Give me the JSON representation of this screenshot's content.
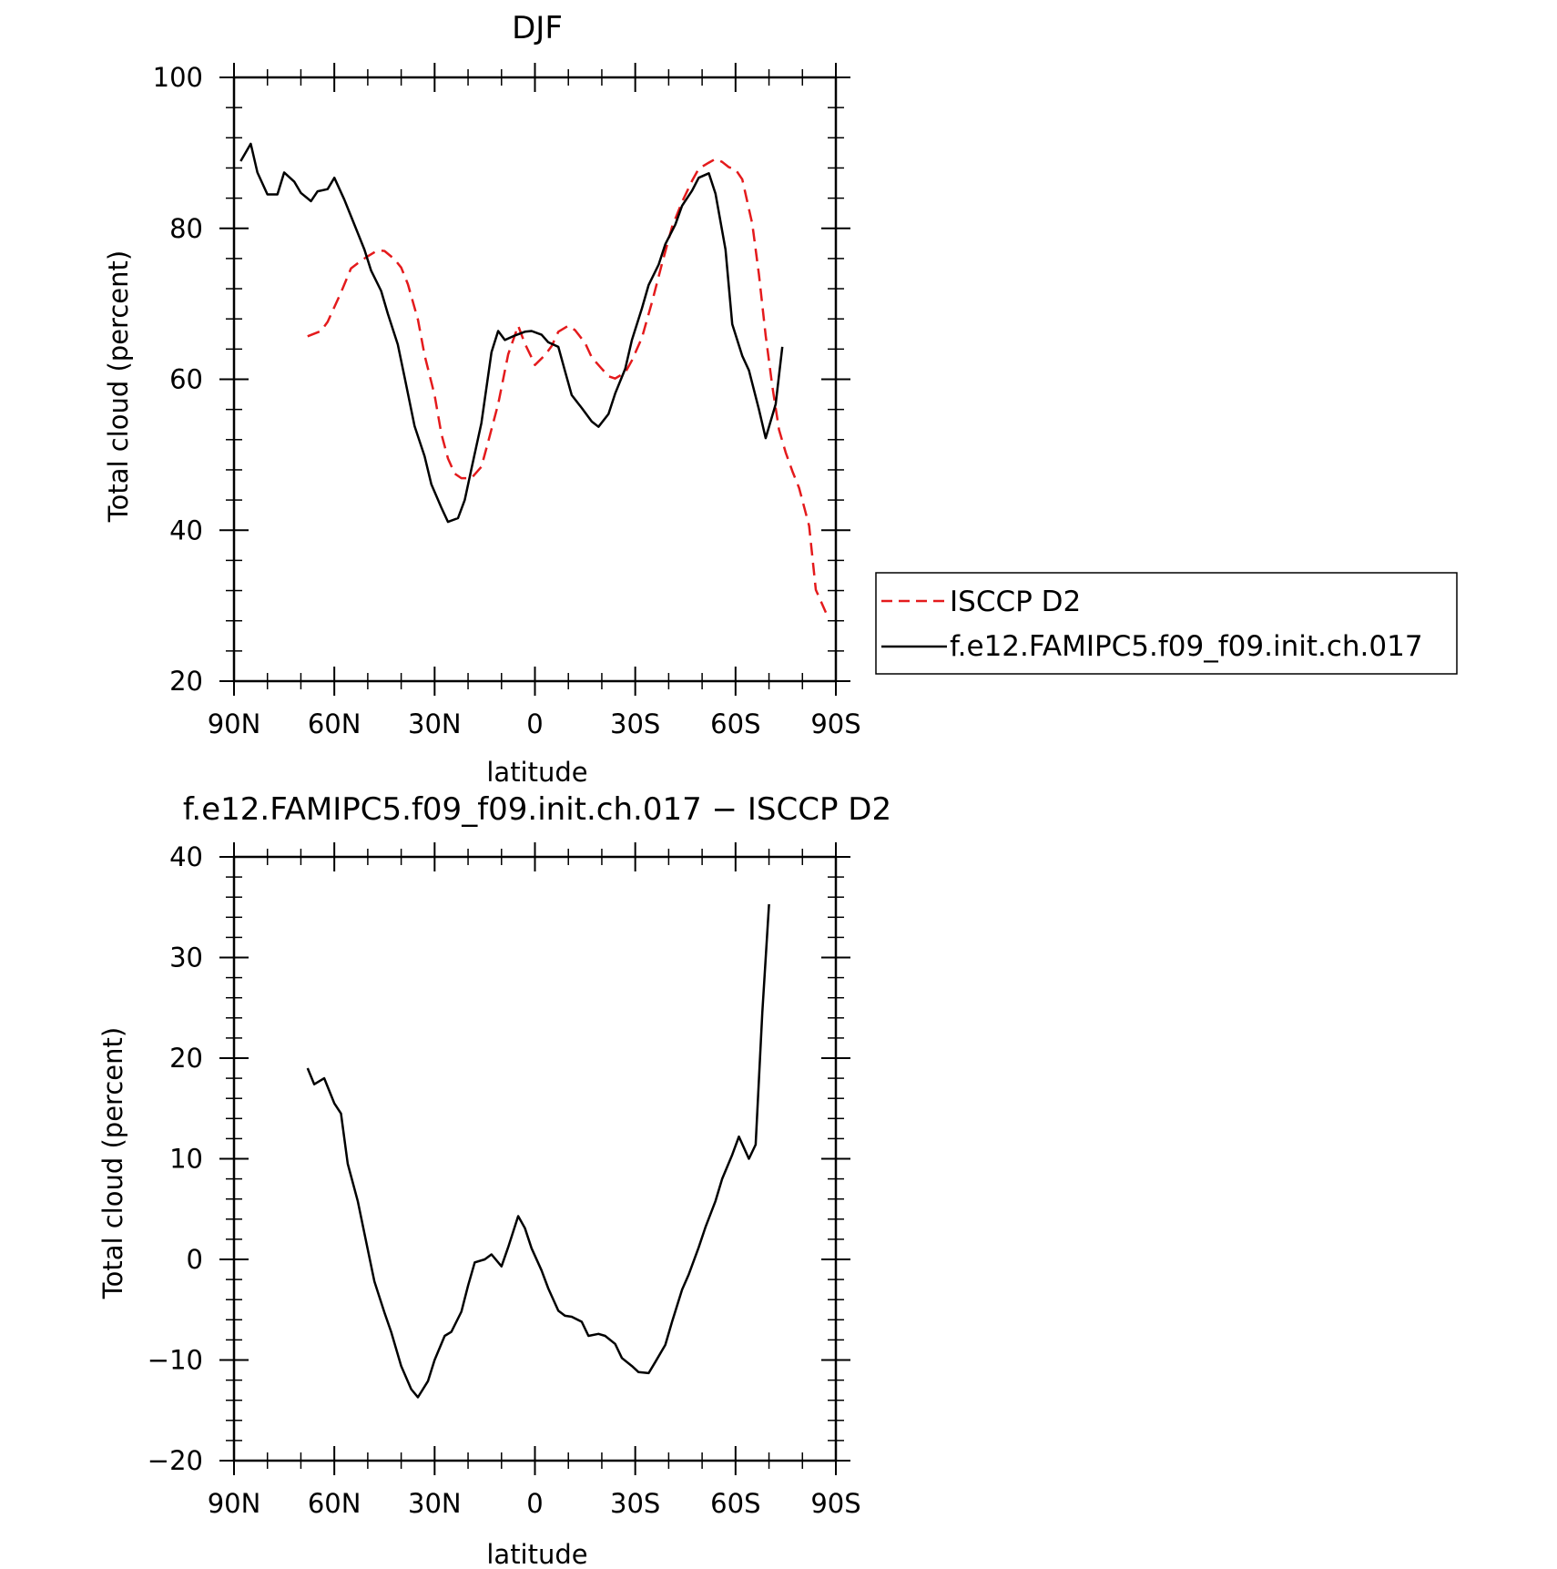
{
  "chart_data": [
    {
      "type": "line",
      "title": "DJF",
      "xlabel": "latitude",
      "ylabel": "Total cloud (percent)",
      "xlim": [
        90,
        -90
      ],
      "ylim": [
        20,
        100
      ],
      "x_ticks": [
        90,
        60,
        30,
        0,
        -30,
        -60,
        -90
      ],
      "x_tick_labels": [
        "90N",
        "60N",
        "30N",
        "0",
        "30S",
        "60S",
        "90S"
      ],
      "y_ticks": [
        20,
        40,
        60,
        80,
        100
      ],
      "y_tick_labels": [
        "20",
        "40",
        "60",
        "80",
        "100"
      ],
      "legend_position": "right",
      "series": [
        {
          "name": "ISCCP D2",
          "color": "#e41a1c",
          "style": "dashed",
          "points": [
            [
              68,
              65.7
            ],
            [
              64,
              66.4
            ],
            [
              62,
              67.6
            ],
            [
              58,
              71.5
            ],
            [
              55,
              74.7
            ],
            [
              52,
              75.7
            ],
            [
              50,
              76.3
            ],
            [
              47,
              77.1
            ],
            [
              45,
              77.0
            ],
            [
              42,
              75.9
            ],
            [
              40,
              74.8
            ],
            [
              38,
              72.6
            ],
            [
              35,
              67.9
            ],
            [
              33,
              63.2
            ],
            [
              30,
              57.9
            ],
            [
              28,
              52.8
            ],
            [
              26,
              49.5
            ],
            [
              24,
              47.5
            ],
            [
              22,
              46.9
            ],
            [
              19,
              46.9
            ],
            [
              16,
              48.4
            ],
            [
              14,
              51.7
            ],
            [
              11,
              56.7
            ],
            [
              8,
              63.3
            ],
            [
              5,
              67.1
            ],
            [
              3,
              64.7
            ],
            [
              1,
              62.9
            ],
            [
              0,
              61.9
            ],
            [
              -3,
              63.2
            ],
            [
              -5,
              64.4
            ],
            [
              -7,
              66.3
            ],
            [
              -10,
              67.1
            ],
            [
              -12,
              66.5
            ],
            [
              -15,
              64.8
            ],
            [
              -17,
              62.9
            ],
            [
              -20,
              61.4
            ],
            [
              -22,
              60.4
            ],
            [
              -24,
              60.1
            ],
            [
              -27,
              60.9
            ],
            [
              -29,
              62.5
            ],
            [
              -32,
              65.5
            ],
            [
              -35,
              70.2
            ],
            [
              -38,
              75.3
            ],
            [
              -41,
              80.2
            ],
            [
              -44,
              83.5
            ],
            [
              -47,
              86.3
            ],
            [
              -49,
              87.9
            ],
            [
              -52,
              88.7
            ],
            [
              -54,
              89.2
            ],
            [
              -56,
              88.8
            ],
            [
              -58,
              88.1
            ],
            [
              -60,
              87.8
            ],
            [
              -62,
              86.5
            ],
            [
              -65,
              80.6
            ],
            [
              -67,
              73.9
            ],
            [
              -69,
              65.8
            ],
            [
              -71,
              59.1
            ],
            [
              -73,
              53.3
            ],
            [
              -75,
              50.3
            ],
            [
              -77,
              47.8
            ],
            [
              -79,
              45.6
            ],
            [
              -82,
              40.6
            ],
            [
              -84,
              32.1
            ],
            [
              -87,
              29.1
            ]
          ]
        },
        {
          "name": "f.e12.FAMIPC5.f09_f09.init.ch.017",
          "color": "#000000",
          "style": "solid",
          "points": [
            [
              88,
              88.9
            ],
            [
              85,
              91.2
            ],
            [
              83,
              87.4
            ],
            [
              80,
              84.5
            ],
            [
              77,
              84.5
            ],
            [
              75,
              87.4
            ],
            [
              72,
              86.2
            ],
            [
              70,
              84.7
            ],
            [
              67,
              83.6
            ],
            [
              65,
              84.9
            ],
            [
              62,
              85.2
            ],
            [
              60,
              86.7
            ],
            [
              57,
              83.8
            ],
            [
              54,
              80.5
            ],
            [
              51,
              77.2
            ],
            [
              49,
              74.4
            ],
            [
              46,
              71.7
            ],
            [
              44,
              68.7
            ],
            [
              41,
              64.6
            ],
            [
              39,
              60.3
            ],
            [
              36,
              53.8
            ],
            [
              33,
              49.8
            ],
            [
              31,
              46.1
            ],
            [
              28,
              43.0
            ],
            [
              26,
              41.1
            ],
            [
              23,
              41.6
            ],
            [
              21,
              44.0
            ],
            [
              19,
              48.1
            ],
            [
              16,
              54.2
            ],
            [
              13,
              63.6
            ],
            [
              11,
              66.4
            ],
            [
              9,
              65.2
            ],
            [
              6,
              65.8
            ],
            [
              3,
              66.3
            ],
            [
              1,
              66.4
            ],
            [
              -2,
              65.9
            ],
            [
              -4,
              64.9
            ],
            [
              -7,
              64.3
            ],
            [
              -9,
              61.1
            ],
            [
              -11,
              57.9
            ],
            [
              -14,
              56.2
            ],
            [
              -17,
              54.4
            ],
            [
              -19,
              53.7
            ],
            [
              -22,
              55.4
            ],
            [
              -24,
              58.1
            ],
            [
              -27,
              61.4
            ],
            [
              -29,
              65.2
            ],
            [
              -32,
              69.4
            ],
            [
              -34,
              72.5
            ],
            [
              -37,
              75.2
            ],
            [
              -39,
              77.9
            ],
            [
              -42,
              80.5
            ],
            [
              -44,
              83.0
            ],
            [
              -47,
              85.0
            ],
            [
              -49,
              86.7
            ],
            [
              -52,
              87.3
            ],
            [
              -54,
              84.6
            ],
            [
              -57,
              77.2
            ],
            [
              -59,
              67.3
            ],
            [
              -62,
              63.1
            ],
            [
              -64,
              61.2
            ],
            [
              -67,
              56.0
            ],
            [
              -69,
              52.2
            ],
            [
              -72,
              56.7
            ],
            [
              -74,
              64.3
            ]
          ]
        }
      ]
    },
    {
      "type": "line",
      "title": "f.e12.FAMIPC5.f09_f09.init.ch.017 − ISCCP D2",
      "xlabel": "latitude",
      "ylabel": "Total cloud (percent)",
      "xlim": [
        90,
        -90
      ],
      "ylim": [
        -20,
        40
      ],
      "x_ticks": [
        90,
        60,
        30,
        0,
        -30,
        -60,
        -90
      ],
      "x_tick_labels": [
        "90N",
        "60N",
        "30N",
        "0",
        "30S",
        "60S",
        "90S"
      ],
      "y_ticks": [
        -20,
        -10,
        0,
        10,
        20,
        30,
        40
      ],
      "y_tick_labels": [
        "−20",
        "−10",
        "0",
        "10",
        "20",
        "30",
        "40"
      ],
      "series": [
        {
          "color": "#000000",
          "style": "solid",
          "points": [
            [
              68,
              19.0
            ],
            [
              66,
              17.4
            ],
            [
              63,
              18.0
            ],
            [
              60,
              15.5
            ],
            [
              58,
              14.5
            ],
            [
              56,
              9.5
            ],
            [
              53,
              5.8
            ],
            [
              51,
              2.6
            ],
            [
              48,
              -2.2
            ],
            [
              45,
              -5.3
            ],
            [
              43,
              -7.2
            ],
            [
              40,
              -10.6
            ],
            [
              37,
              -12.9
            ],
            [
              35,
              -13.7
            ],
            [
              32,
              -12.1
            ],
            [
              30,
              -10.0
            ],
            [
              27,
              -7.6
            ],
            [
              25,
              -7.2
            ],
            [
              22,
              -5.2
            ],
            [
              20,
              -2.6
            ],
            [
              18,
              -0.3
            ],
            [
              15,
              0.0
            ],
            [
              13,
              0.5
            ],
            [
              10,
              -0.7
            ],
            [
              8,
              1.2
            ],
            [
              5,
              4.3
            ],
            [
              3,
              3.1
            ],
            [
              1,
              1.1
            ],
            [
              -2,
              -1.1
            ],
            [
              -4,
              -2.9
            ],
            [
              -7,
              -5.1
            ],
            [
              -9,
              -5.6
            ],
            [
              -11,
              -5.7
            ],
            [
              -14,
              -6.2
            ],
            [
              -16,
              -7.6
            ],
            [
              -19,
              -7.4
            ],
            [
              -21,
              -7.6
            ],
            [
              -24,
              -8.4
            ],
            [
              -26,
              -9.8
            ],
            [
              -29,
              -10.6
            ],
            [
              -31,
              -11.2
            ],
            [
              -34,
              -11.3
            ],
            [
              -36,
              -10.2
            ],
            [
              -39,
              -8.5
            ],
            [
              -41,
              -6.2
            ],
            [
              -44,
              -3.0
            ],
            [
              -46,
              -1.5
            ],
            [
              -49,
              1.2
            ],
            [
              -51,
              3.2
            ],
            [
              -54,
              5.8
            ],
            [
              -56,
              8.0
            ],
            [
              -59,
              10.4
            ],
            [
              -61,
              12.2
            ],
            [
              -64,
              10.0
            ],
            [
              -66,
              11.4
            ],
            [
              -68,
              24.5
            ],
            [
              -70,
              35.3
            ]
          ]
        }
      ]
    }
  ]
}
